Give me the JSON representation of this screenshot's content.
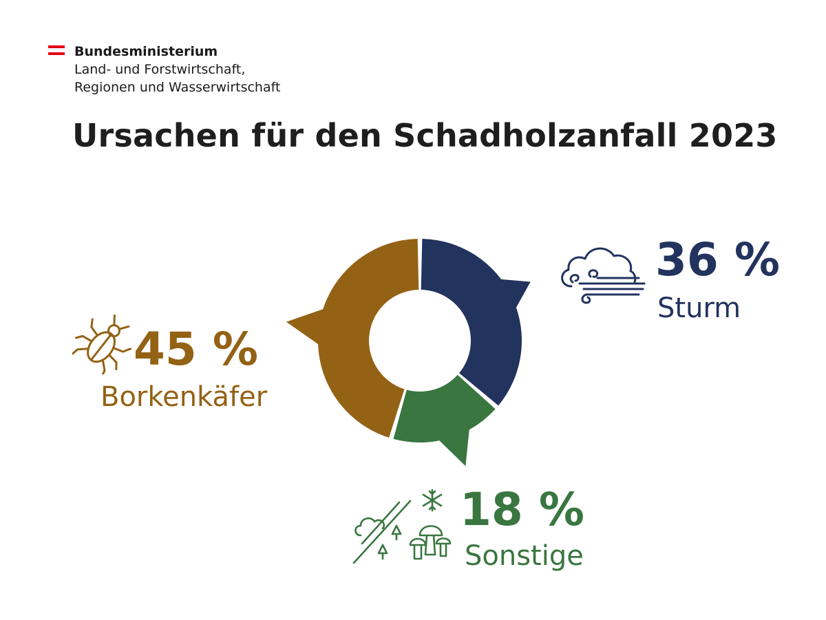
{
  "header": {
    "ministry_line1": "Bundesministerium",
    "ministry_line2": "Land- und Forstwirtschaft,",
    "ministry_line3": "Regionen und Wasserwirtschaft",
    "flag_color": "#e30613"
  },
  "title": "Ursachen für den Schadholzanfall 2023",
  "chart_data": {
    "type": "pie",
    "title": "Ursachen für den Schadholzanfall 2023",
    "unit": "%",
    "slices": [
      {
        "label": "Sturm",
        "value": 36,
        "value_label": "36 %",
        "color": "#22335e",
        "icon": "storm-wind-icon"
      },
      {
        "label": "Sonstige",
        "value": 18,
        "value_label": "18 %",
        "color": "#3a7640",
        "icon": "snow-mushroom-tree-icon"
      },
      {
        "label": "Borkenkäfer",
        "value": 45,
        "value_label": "45 %",
        "color": "#946215",
        "icon": "bark-beetle-icon"
      }
    ]
  }
}
